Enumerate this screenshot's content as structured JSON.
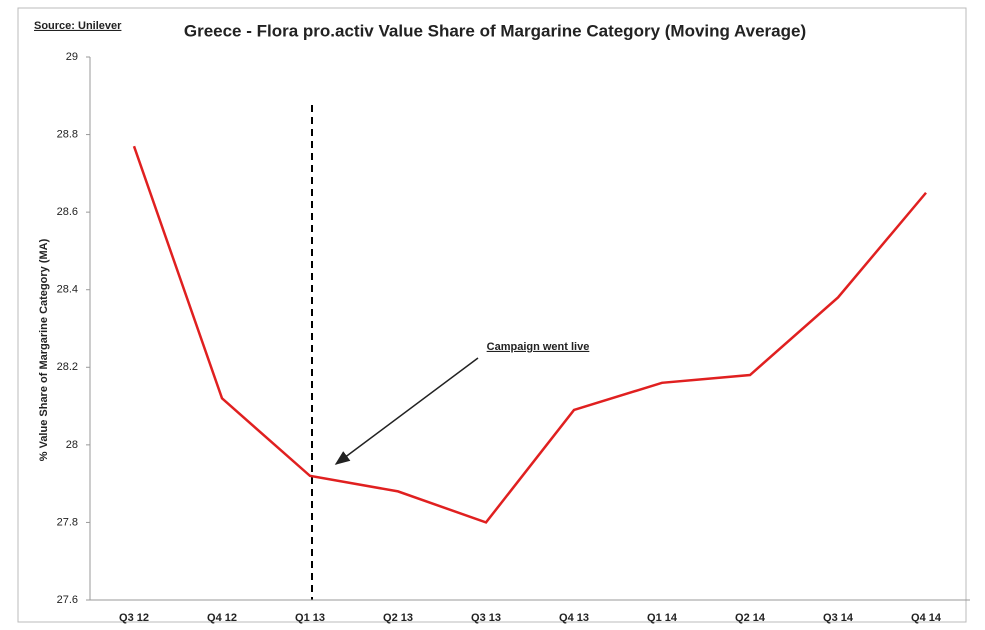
{
  "chart_data": {
    "type": "line",
    "title": "Greece - Flora pro.activ Value Share of Margarine Category (Moving Average)",
    "source": "Source: Unilever",
    "y_label": "% Value Share of Margarine Category (MA)",
    "annotation": "Campaign went live",
    "categories": [
      "Q3 12",
      "Q4 12",
      "Q1 13",
      "Q2 13",
      "Q3 13",
      "Q4 13",
      "Q1 14",
      "Q2 14",
      "Q3 14",
      "Q4 14"
    ],
    "series": [
      {
        "name": "Value Share",
        "color": "#e02020",
        "values": [
          28.77,
          28.12,
          27.92,
          27.88,
          27.8,
          28.09,
          28.16,
          28.18,
          28.38,
          28.65
        ]
      }
    ],
    "ylim": [
      27.6,
      29
    ],
    "yticks": [
      27.6,
      27.8,
      28,
      28.2,
      28.4,
      28.6,
      28.8,
      29
    ],
    "grid": false
  }
}
